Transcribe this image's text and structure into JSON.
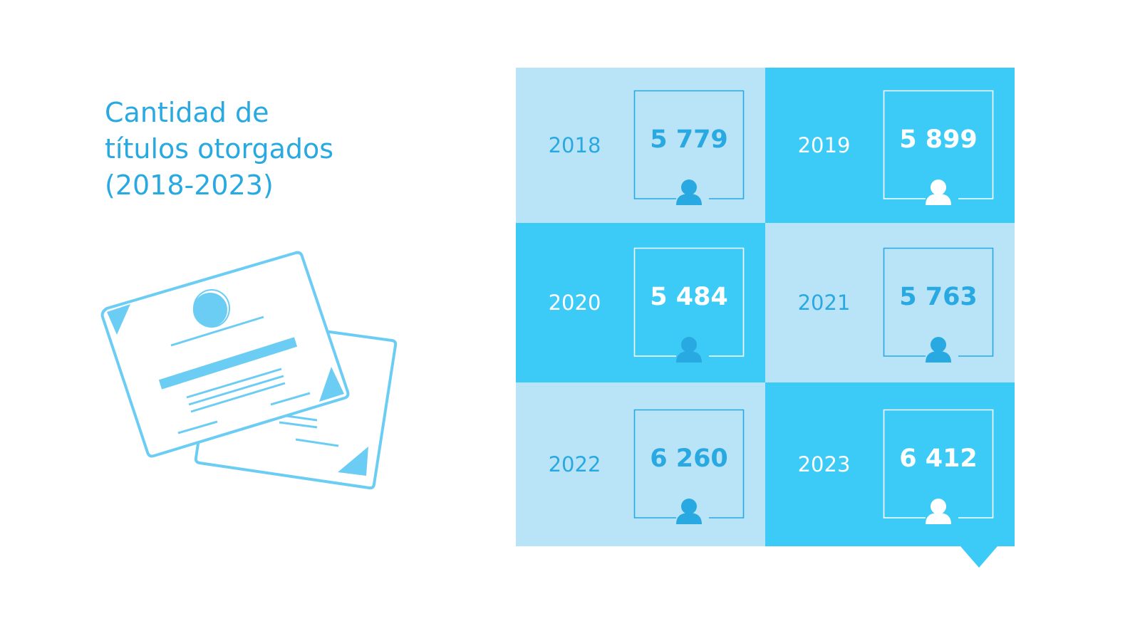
{
  "chart_data": {
    "type": "table",
    "title": "Cantidad de títulos otorgados (2018-2023)",
    "title_lines": [
      "Cantidad de",
      "títulos otorgados",
      "(2018-2023)"
    ],
    "rows": [
      {
        "year": "2018",
        "value": "5 779",
        "number": 5779,
        "shade": "light"
      },
      {
        "year": "2019",
        "value": "5 899",
        "number": 5899,
        "shade": "dark"
      },
      {
        "year": "2020",
        "value": "5 484",
        "number": 5484,
        "shade": "dark"
      },
      {
        "year": "2021",
        "value": "5 763",
        "number": 5763,
        "shade": "light"
      },
      {
        "year": "2022",
        "value": "6 260",
        "number": 6260,
        "shade": "light"
      },
      {
        "year": "2023",
        "value": "6 412",
        "number": 6412,
        "shade": "dark"
      }
    ]
  },
  "colors": {
    "title": "#29a9e1",
    "light_cell": "#b9e4f8",
    "dark_cell": "#3ccaf7",
    "person_on_light": "#29a9e1",
    "person_on_dark": "#ffffff",
    "illustration_stroke": "#6ccdf4"
  },
  "icons": {
    "illustration": "diploma-certificates-icon",
    "person": "person-icon"
  }
}
